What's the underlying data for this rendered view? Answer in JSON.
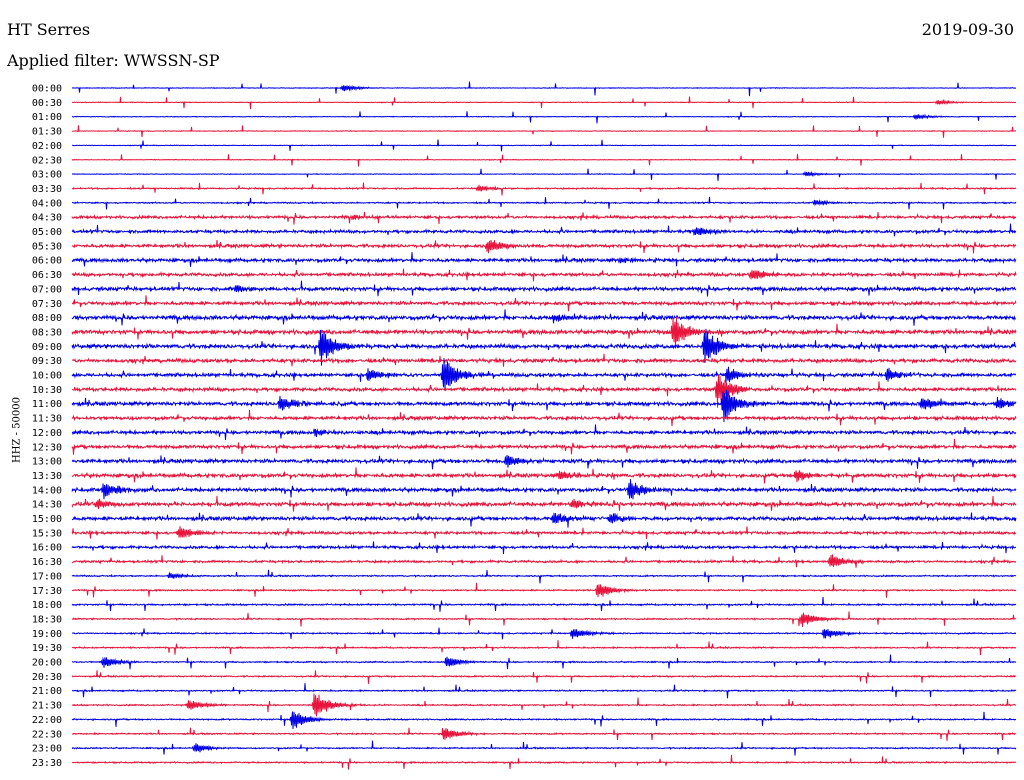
{
  "header": {
    "station": "HT Serres",
    "date": "2019-09-30",
    "filter_label": "Applied filter: WWSSN-SP"
  },
  "chart_data": {
    "type": "line",
    "title": "HT Serres",
    "subtitle": "Applied filter: WWSSN-SP",
    "date": "2019-09-30",
    "ylabel": "HHZ - 50000",
    "xlabel": "",
    "row_labels": [
      "00:00",
      "00:30",
      "01:00",
      "01:30",
      "02:00",
      "02:30",
      "03:00",
      "03:30",
      "04:00",
      "04:30",
      "05:00",
      "05:30",
      "06:00",
      "06:30",
      "07:00",
      "07:30",
      "08:00",
      "08:30",
      "09:00",
      "09:30",
      "10:00",
      "10:30",
      "11:00",
      "11:30",
      "12:00",
      "12:30",
      "13:00",
      "13:30",
      "14:00",
      "14:30",
      "15:00",
      "15:30",
      "16:00",
      "16:30",
      "17:00",
      "17:30",
      "18:00",
      "18:30",
      "19:00",
      "19:30",
      "20:00",
      "20:30",
      "21:00",
      "21:30",
      "22:00",
      "22:30",
      "23:00",
      "23:30"
    ],
    "row_colors": [
      "#0000e6",
      "#e8143c"
    ],
    "trace_minutes": 30,
    "noise_levels": [
      0.3,
      0.3,
      0.3,
      0.3,
      0.3,
      0.3,
      0.3,
      0.6,
      0.6,
      1.2,
      1.3,
      1.4,
      1.5,
      1.4,
      1.6,
      1.5,
      1.8,
      1.8,
      1.8,
      1.6,
      1.5,
      1.5,
      1.6,
      1.5,
      1.5,
      1.5,
      1.6,
      1.6,
      1.6,
      1.7,
      1.6,
      1.2,
      1.2,
      1.0,
      0.6,
      0.6,
      0.7,
      0.6,
      0.6,
      0.6,
      0.6,
      0.6,
      0.6,
      0.6,
      0.6,
      0.6,
      0.6,
      0.6
    ],
    "events": [
      {
        "row": 0,
        "minute": 8.6,
        "amplitude": 4
      },
      {
        "row": 1,
        "minute": 27.5,
        "amplitude": 3
      },
      {
        "row": 2,
        "minute": 26.8,
        "amplitude": 3
      },
      {
        "row": 6,
        "minute": 23.3,
        "amplitude": 3
      },
      {
        "row": 7,
        "minute": 12.9,
        "amplitude": 4
      },
      {
        "row": 8,
        "minute": 23.6,
        "amplitude": 4
      },
      {
        "row": 9,
        "minute": 8.9,
        "amplitude": 3
      },
      {
        "row": 10,
        "minute": 19.8,
        "amplitude": 6
      },
      {
        "row": 11,
        "minute": 13.2,
        "amplitude": 9
      },
      {
        "row": 12,
        "minute": 17.4,
        "amplitude": 4
      },
      {
        "row": 13,
        "minute": 21.6,
        "amplitude": 7
      },
      {
        "row": 14,
        "minute": 5.2,
        "amplitude": 5
      },
      {
        "row": 16,
        "minute": 15.3,
        "amplitude": 5
      },
      {
        "row": 17,
        "minute": 19.1,
        "amplitude": 20
      },
      {
        "row": 18,
        "minute": 7.9,
        "amplitude": 22
      },
      {
        "row": 18,
        "minute": 20.1,
        "amplitude": 22
      },
      {
        "row": 20,
        "minute": 11.8,
        "amplitude": 24
      },
      {
        "row": 20,
        "minute": 9.4,
        "amplitude": 8
      },
      {
        "row": 20,
        "minute": 20.8,
        "amplitude": 10
      },
      {
        "row": 20,
        "minute": 25.9,
        "amplitude": 8
      },
      {
        "row": 21,
        "minute": 20.5,
        "amplitude": 20
      },
      {
        "row": 22,
        "minute": 6.6,
        "amplitude": 10
      },
      {
        "row": 22,
        "minute": 20.7,
        "amplitude": 22
      },
      {
        "row": 22,
        "minute": 27.0,
        "amplitude": 8
      },
      {
        "row": 22,
        "minute": 29.4,
        "amplitude": 8
      },
      {
        "row": 24,
        "minute": 7.7,
        "amplitude": 5
      },
      {
        "row": 26,
        "minute": 13.8,
        "amplitude": 8
      },
      {
        "row": 27,
        "minute": 15.5,
        "amplitude": 6
      },
      {
        "row": 27,
        "minute": 23.0,
        "amplitude": 8
      },
      {
        "row": 28,
        "minute": 1.0,
        "amplitude": 10
      },
      {
        "row": 28,
        "minute": 17.7,
        "amplitude": 12
      },
      {
        "row": 29,
        "minute": 0.8,
        "amplitude": 6
      },
      {
        "row": 29,
        "minute": 15.9,
        "amplitude": 6
      },
      {
        "row": 30,
        "minute": 15.3,
        "amplitude": 8
      },
      {
        "row": 30,
        "minute": 17.1,
        "amplitude": 7
      },
      {
        "row": 31,
        "minute": 3.4,
        "amplitude": 8
      },
      {
        "row": 33,
        "minute": 24.1,
        "amplitude": 9
      },
      {
        "row": 34,
        "minute": 3.1,
        "amplitude": 4
      },
      {
        "row": 35,
        "minute": 16.7,
        "amplitude": 10
      },
      {
        "row": 37,
        "minute": 23.2,
        "amplitude": 9
      },
      {
        "row": 38,
        "minute": 15.9,
        "amplitude": 7
      },
      {
        "row": 38,
        "minute": 23.9,
        "amplitude": 7
      },
      {
        "row": 40,
        "minute": 1.0,
        "amplitude": 7
      },
      {
        "row": 40,
        "minute": 11.9,
        "amplitude": 7
      },
      {
        "row": 43,
        "minute": 3.7,
        "amplitude": 7
      },
      {
        "row": 43,
        "minute": 7.7,
        "amplitude": 16
      },
      {
        "row": 44,
        "minute": 7.0,
        "amplitude": 12
      },
      {
        "row": 45,
        "minute": 11.8,
        "amplitude": 9
      },
      {
        "row": 46,
        "minute": 3.9,
        "amplitude": 6
      }
    ]
  }
}
